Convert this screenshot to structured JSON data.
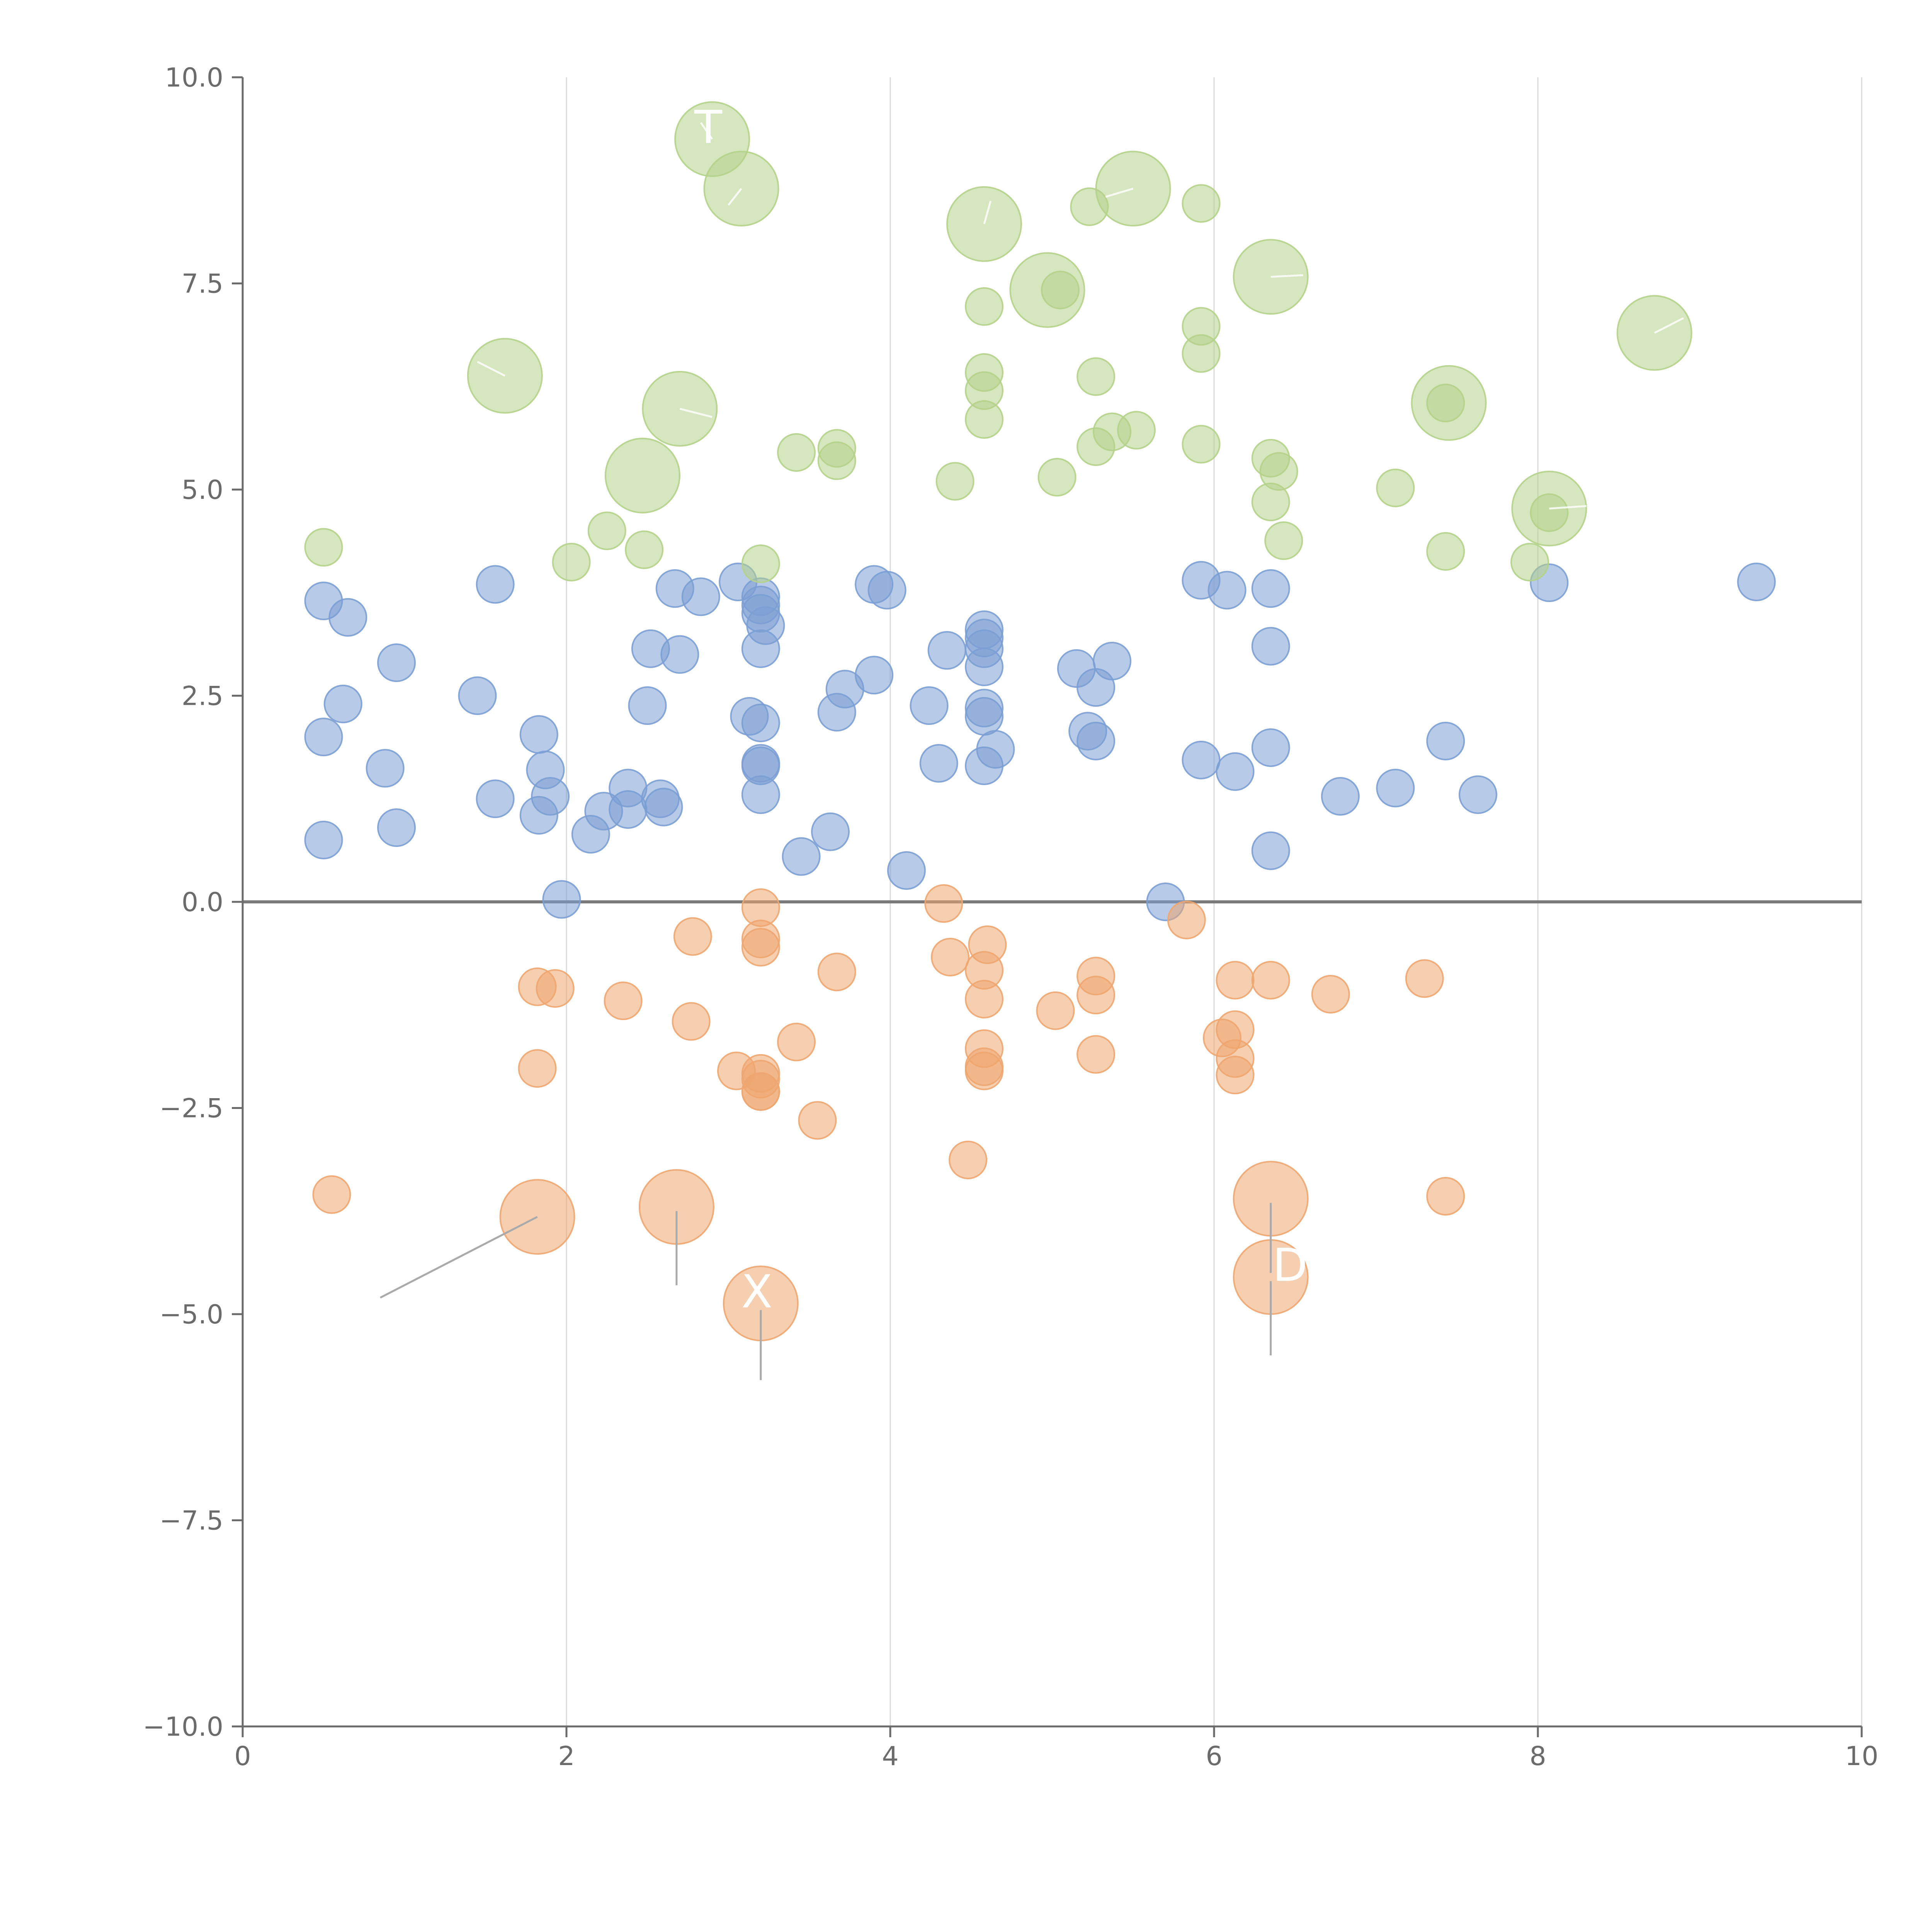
{
  "chart_data": {
    "type": "scatter",
    "title": "",
    "xlabel": "",
    "ylabel": "",
    "xlim": [
      0,
      10
    ],
    "ylim": [
      -10,
      10
    ],
    "x_ticks": [
      "0",
      "2",
      "4",
      "6",
      "8",
      "10"
    ],
    "y_ticks": [
      "10.0",
      "7.5",
      "5.0",
      "2.5",
      "0.0",
      "−2.5",
      "−5.0",
      "−7.5",
      "−10.0"
    ],
    "x_tick_values": [
      0,
      2,
      4,
      6,
      8,
      10
    ],
    "y_tick_values": [
      10,
      7.5,
      5,
      2.5,
      0,
      -2.5,
      -5,
      -7.5,
      -10
    ],
    "grid": "vertical",
    "reference_line_y": 0,
    "colors": {
      "blue": "#7b9fd4",
      "green": "#b5d18a",
      "orange": "#eea670",
      "axis": "#6b6b6b",
      "grid": "#d9d9d9",
      "zero": "#7a7a7a",
      "leader": "#aaaaaa"
    },
    "series": [
      {
        "name": "blue",
        "color": "#7b9fd4",
        "points": [
          [
            0.5,
            3.65
          ],
          [
            0.65,
            3.45
          ],
          [
            0.95,
            2.9
          ],
          [
            0.62,
            2.4
          ],
          [
            0.5,
            2.0
          ],
          [
            0.88,
            1.62
          ],
          [
            0.5,
            0.75
          ],
          [
            0.95,
            0.9
          ],
          [
            1.56,
            3.85
          ],
          [
            1.45,
            2.5
          ],
          [
            1.56,
            1.25
          ],
          [
            1.83,
            2.03
          ],
          [
            1.87,
            1.6
          ],
          [
            1.9,
            1.28
          ],
          [
            1.83,
            1.05
          ],
          [
            1.97,
            0.03
          ],
          [
            2.15,
            0.82
          ],
          [
            2.23,
            1.1
          ],
          [
            2.38,
            1.38
          ],
          [
            2.38,
            1.12
          ],
          [
            2.58,
            1.25
          ],
          [
            2.6,
            1.15
          ],
          [
            2.5,
            2.38
          ],
          [
            2.52,
            3.07
          ],
          [
            2.67,
            3.8
          ],
          [
            2.7,
            3.0
          ],
          [
            2.83,
            3.7
          ],
          [
            3.06,
            3.88
          ],
          [
            3.2,
            3.7
          ],
          [
            3.2,
            3.6
          ],
          [
            3.2,
            3.5
          ],
          [
            3.23,
            3.35
          ],
          [
            3.2,
            3.07
          ],
          [
            3.13,
            2.25
          ],
          [
            3.2,
            2.17
          ],
          [
            3.2,
            1.68
          ],
          [
            3.2,
            1.65
          ],
          [
            3.2,
            1.3
          ],
          [
            3.45,
            0.55
          ],
          [
            3.63,
            0.85
          ],
          [
            3.67,
            2.3
          ],
          [
            3.72,
            2.58
          ],
          [
            3.9,
            3.85
          ],
          [
            3.98,
            3.78
          ],
          [
            3.9,
            2.75
          ],
          [
            4.1,
            0.38
          ],
          [
            4.24,
            2.38
          ],
          [
            4.3,
            1.68
          ],
          [
            4.35,
            3.05
          ],
          [
            4.58,
            3.3
          ],
          [
            4.58,
            3.2
          ],
          [
            4.58,
            3.07
          ],
          [
            4.58,
            2.85
          ],
          [
            4.58,
            2.35
          ],
          [
            4.58,
            2.25
          ],
          [
            4.65,
            1.85
          ],
          [
            4.58,
            1.65
          ],
          [
            5.15,
            2.83
          ],
          [
            5.27,
            2.6
          ],
          [
            5.37,
            2.92
          ],
          [
            5.22,
            2.07
          ],
          [
            5.27,
            1.95
          ],
          [
            5.7,
            0.0
          ],
          [
            5.92,
            3.9
          ],
          [
            6.08,
            3.78
          ],
          [
            5.92,
            1.72
          ],
          [
            6.13,
            1.58
          ],
          [
            6.35,
            3.8
          ],
          [
            6.35,
            3.1
          ],
          [
            6.35,
            1.87
          ],
          [
            6.35,
            0.62
          ],
          [
            6.78,
            1.28
          ],
          [
            7.12,
            1.38
          ],
          [
            7.43,
            1.95
          ],
          [
            7.63,
            1.3
          ],
          [
            8.07,
            3.87
          ],
          [
            9.35,
            3.88
          ]
        ]
      },
      {
        "name": "green",
        "color": "#b5d18a",
        "points": [
          [
            0.5,
            4.3
          ],
          [
            2.03,
            4.12
          ],
          [
            2.25,
            4.5
          ],
          [
            2.48,
            4.27
          ],
          [
            3.2,
            4.1
          ],
          [
            3.42,
            5.45
          ],
          [
            3.67,
            5.5
          ],
          [
            3.67,
            5.35
          ],
          [
            4.4,
            5.1
          ],
          [
            4.58,
            7.22
          ],
          [
            4.58,
            6.42
          ],
          [
            4.58,
            6.2
          ],
          [
            4.58,
            5.85
          ],
          [
            5.03,
            5.15
          ],
          [
            5.05,
            7.42
          ],
          [
            5.23,
            8.43
          ],
          [
            5.27,
            6.37
          ],
          [
            5.27,
            5.52
          ],
          [
            5.37,
            5.7
          ],
          [
            5.52,
            5.72
          ],
          [
            5.92,
            8.47
          ],
          [
            5.92,
            6.98
          ],
          [
            5.92,
            6.65
          ],
          [
            5.92,
            5.55
          ],
          [
            6.35,
            5.38
          ],
          [
            6.4,
            5.22
          ],
          [
            6.35,
            4.85
          ],
          [
            6.43,
            4.38
          ],
          [
            7.12,
            5.02
          ],
          [
            7.43,
            6.05
          ],
          [
            7.43,
            4.25
          ],
          [
            7.95,
            4.12
          ],
          [
            8.07,
            4.72
          ]
        ]
      },
      {
        "name": "orange",
        "color": "#eea670",
        "points": [
          [
            0.55,
            -3.55
          ],
          [
            1.82,
            -1.03
          ],
          [
            1.93,
            -1.05
          ],
          [
            1.82,
            -2.02
          ],
          [
            2.35,
            -1.2
          ],
          [
            2.78,
            -0.42
          ],
          [
            2.77,
            -1.45
          ],
          [
            3.2,
            -0.07
          ],
          [
            3.2,
            -0.45
          ],
          [
            3.2,
            -0.55
          ],
          [
            3.05,
            -2.05
          ],
          [
            3.2,
            -2.08
          ],
          [
            3.2,
            -2.15
          ],
          [
            3.2,
            -2.3
          ],
          [
            3.2,
            -2.3
          ],
          [
            3.42,
            -1.7
          ],
          [
            3.55,
            -2.65
          ],
          [
            3.67,
            -0.85
          ],
          [
            4.33,
            -0.02
          ],
          [
            4.37,
            -0.67
          ],
          [
            4.6,
            -0.52
          ],
          [
            4.58,
            -0.83
          ],
          [
            4.58,
            -1.18
          ],
          [
            4.58,
            -1.78
          ],
          [
            4.58,
            -2.0
          ],
          [
            4.58,
            -2.05
          ],
          [
            4.48,
            -3.13
          ],
          [
            5.02,
            -1.32
          ],
          [
            5.27,
            -0.9
          ],
          [
            5.27,
            -1.13
          ],
          [
            5.27,
            -1.85
          ],
          [
            5.83,
            -0.22
          ],
          [
            6.13,
            -0.95
          ],
          [
            6.13,
            -1.55
          ],
          [
            6.05,
            -1.65
          ],
          [
            6.13,
            -1.9
          ],
          [
            6.13,
            -2.1
          ],
          [
            6.35,
            -0.95
          ],
          [
            6.72,
            -1.12
          ],
          [
            7.3,
            -0.93
          ],
          [
            7.43,
            -3.57
          ]
        ]
      }
    ],
    "large_bubbles": [
      {
        "series": "green",
        "x": 2.9,
        "y": 9.25,
        "label": "T"
      },
      {
        "series": "green",
        "x": 3.08,
        "y": 8.65,
        "label": ""
      },
      {
        "series": "green",
        "x": 4.58,
        "y": 8.22,
        "label": ""
      },
      {
        "series": "green",
        "x": 5.5,
        "y": 8.65,
        "label": ""
      },
      {
        "series": "green",
        "x": 4.97,
        "y": 7.42,
        "label": ""
      },
      {
        "series": "green",
        "x": 6.35,
        "y": 7.58,
        "label": ""
      },
      {
        "series": "green",
        "x": 8.72,
        "y": 6.9,
        "label": ""
      },
      {
        "series": "green",
        "x": 1.62,
        "y": 6.38,
        "label": ""
      },
      {
        "series": "green",
        "x": 2.7,
        "y": 5.98,
        "label": ""
      },
      {
        "series": "green",
        "x": 2.47,
        "y": 5.17,
        "label": ""
      },
      {
        "series": "green",
        "x": 7.45,
        "y": 6.05,
        "label": ""
      },
      {
        "series": "green",
        "x": 8.07,
        "y": 4.77,
        "label": ""
      },
      {
        "series": "orange",
        "x": 1.82,
        "y": -3.82,
        "label": ""
      },
      {
        "series": "orange",
        "x": 2.68,
        "y": -3.7,
        "label": ""
      },
      {
        "series": "orange",
        "x": 3.2,
        "y": -4.87,
        "label": "X"
      },
      {
        "series": "orange",
        "x": 6.35,
        "y": -3.6,
        "label": ""
      },
      {
        "series": "orange",
        "x": 6.35,
        "y": -4.55,
        "label": "D"
      }
    ]
  }
}
